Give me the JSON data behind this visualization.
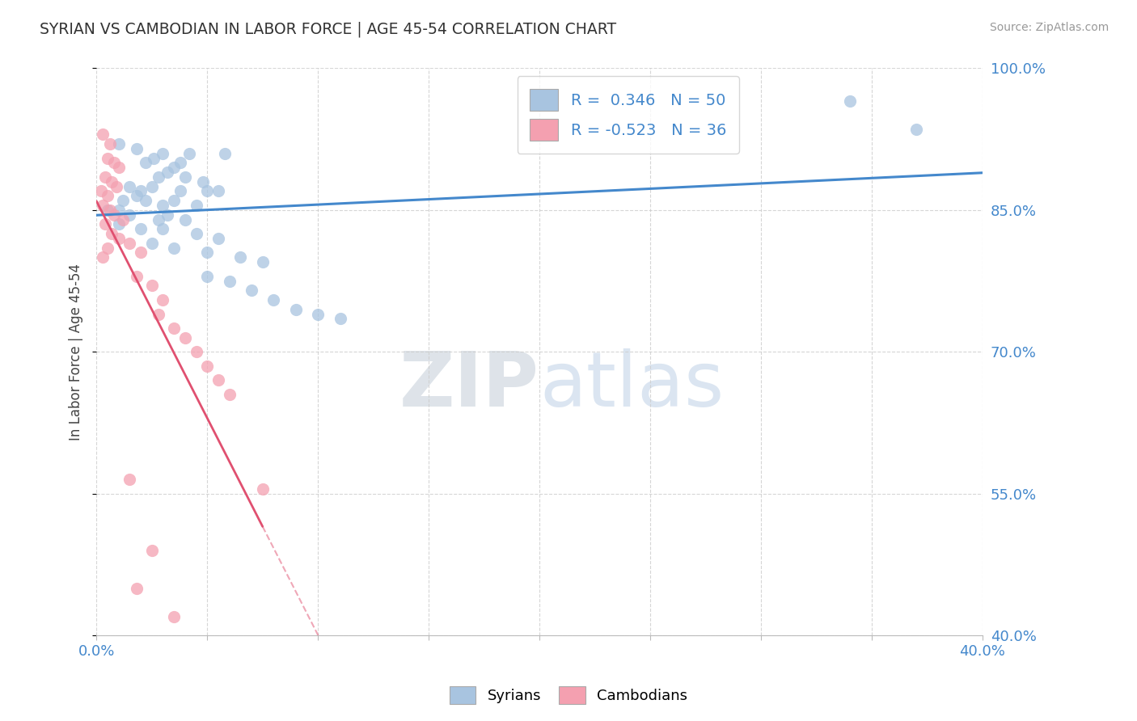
{
  "title": "SYRIAN VS CAMBODIAN IN LABOR FORCE | AGE 45-54 CORRELATION CHART",
  "source_text": "Source: ZipAtlas.com",
  "ylabel": "In Labor Force | Age 45-54",
  "xmin": 0.0,
  "xmax": 40.0,
  "ymin": 40.0,
  "ymax": 100.0,
  "yticks": [
    40.0,
    55.0,
    70.0,
    85.0,
    100.0
  ],
  "xticks": [
    0.0,
    5.0,
    10.0,
    15.0,
    20.0,
    25.0,
    30.0,
    35.0,
    40.0
  ],
  "r_syrian": 0.346,
  "n_syrian": 50,
  "r_cambodian": -0.523,
  "n_cambodian": 36,
  "syrian_color": "#a8c4e0",
  "cambodian_color": "#f4a0b0",
  "trend_syrian_color": "#4488cc",
  "trend_cambodian_color": "#e05070",
  "background_color": "#ffffff",
  "grid_color": "#cccccc",
  "title_color": "#333333",
  "axis_label_color": "#4488cc",
  "legend_r_color": "#4488cc",
  "watermark_zip": "ZIP",
  "watermark_atlas": "atlas",
  "syrian_dots": [
    [
      1.0,
      92.0
    ],
    [
      1.8,
      91.5
    ],
    [
      2.2,
      90.0
    ],
    [
      2.6,
      90.5
    ],
    [
      3.0,
      91.0
    ],
    [
      4.2,
      91.0
    ],
    [
      5.8,
      91.0
    ],
    [
      3.5,
      89.5
    ],
    [
      3.8,
      90.0
    ],
    [
      2.8,
      88.5
    ],
    [
      3.2,
      89.0
    ],
    [
      4.0,
      88.5
    ],
    [
      4.8,
      88.0
    ],
    [
      1.5,
      87.5
    ],
    [
      2.0,
      87.0
    ],
    [
      2.5,
      87.5
    ],
    [
      3.8,
      87.0
    ],
    [
      5.0,
      87.0
    ],
    [
      5.5,
      87.0
    ],
    [
      1.2,
      86.0
    ],
    [
      1.8,
      86.5
    ],
    [
      2.2,
      86.0
    ],
    [
      3.0,
      85.5
    ],
    [
      3.5,
      86.0
    ],
    [
      4.5,
      85.5
    ],
    [
      0.5,
      85.0
    ],
    [
      1.0,
      85.0
    ],
    [
      1.5,
      84.5
    ],
    [
      2.8,
      84.0
    ],
    [
      3.2,
      84.5
    ],
    [
      4.0,
      84.0
    ],
    [
      1.0,
      83.5
    ],
    [
      2.0,
      83.0
    ],
    [
      3.0,
      83.0
    ],
    [
      4.5,
      82.5
    ],
    [
      5.5,
      82.0
    ],
    [
      2.5,
      81.5
    ],
    [
      3.5,
      81.0
    ],
    [
      5.0,
      80.5
    ],
    [
      6.5,
      80.0
    ],
    [
      7.5,
      79.5
    ],
    [
      5.0,
      78.0
    ],
    [
      6.0,
      77.5
    ],
    [
      7.0,
      76.5
    ],
    [
      8.0,
      75.5
    ],
    [
      9.0,
      74.5
    ],
    [
      10.0,
      74.0
    ],
    [
      11.0,
      73.5
    ],
    [
      34.0,
      96.5
    ],
    [
      37.0,
      93.5
    ]
  ],
  "cambodian_dots": [
    [
      0.3,
      93.0
    ],
    [
      0.6,
      92.0
    ],
    [
      0.5,
      90.5
    ],
    [
      0.8,
      90.0
    ],
    [
      1.0,
      89.5
    ],
    [
      0.4,
      88.5
    ],
    [
      0.7,
      88.0
    ],
    [
      0.9,
      87.5
    ],
    [
      0.2,
      87.0
    ],
    [
      0.5,
      86.5
    ],
    [
      0.3,
      85.5
    ],
    [
      0.6,
      85.0
    ],
    [
      0.8,
      84.5
    ],
    [
      1.2,
      84.0
    ],
    [
      0.4,
      83.5
    ],
    [
      0.7,
      82.5
    ],
    [
      1.0,
      82.0
    ],
    [
      0.5,
      81.0
    ],
    [
      0.3,
      80.0
    ],
    [
      1.5,
      81.5
    ],
    [
      2.0,
      80.5
    ],
    [
      1.8,
      78.0
    ],
    [
      2.5,
      77.0
    ],
    [
      3.0,
      75.5
    ],
    [
      2.8,
      74.0
    ],
    [
      3.5,
      72.5
    ],
    [
      4.0,
      71.5
    ],
    [
      4.5,
      70.0
    ],
    [
      5.0,
      68.5
    ],
    [
      5.5,
      67.0
    ],
    [
      6.0,
      65.5
    ],
    [
      1.5,
      56.5
    ],
    [
      7.5,
      55.5
    ],
    [
      2.5,
      49.0
    ],
    [
      1.8,
      45.0
    ],
    [
      3.5,
      42.0
    ]
  ]
}
